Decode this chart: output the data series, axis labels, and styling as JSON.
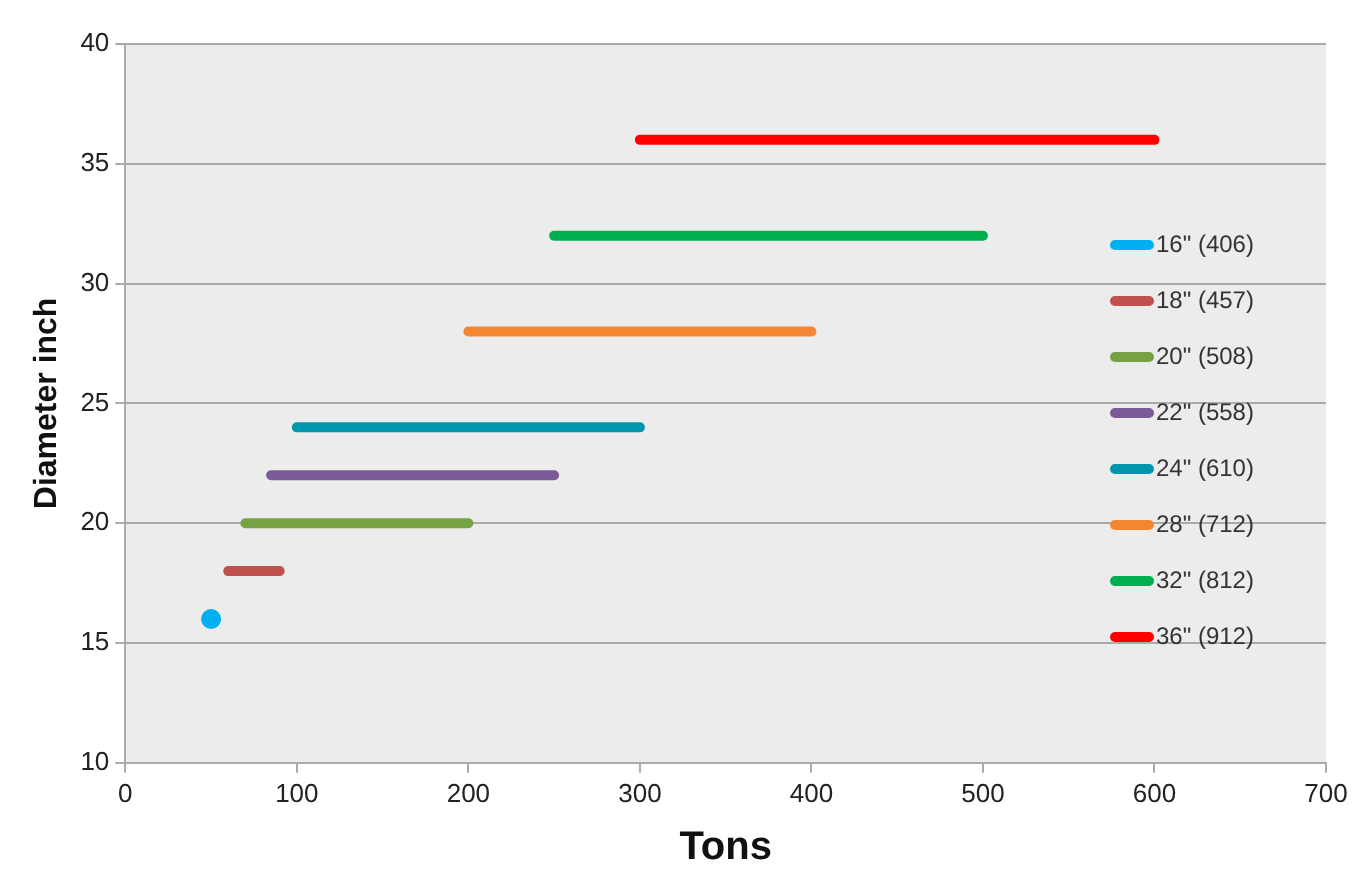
{
  "chart_data": {
    "type": "line",
    "xlabel": "Tons",
    "ylabel": "Diameter inch",
    "xlim": [
      0,
      700
    ],
    "xticks": [
      0,
      100,
      200,
      300,
      400,
      500,
      600,
      700
    ],
    "ylim": [
      10,
      40
    ],
    "yticks": [
      10,
      15,
      20,
      25,
      30,
      35,
      40
    ],
    "grid": "y",
    "legend": "right",
    "marker": "none",
    "series": [
      {
        "name": "16\" (406)",
        "type": "scatter",
        "marker": "circle",
        "color": "#00b0f0",
        "x": [
          50
        ],
        "values": [
          16
        ]
      },
      {
        "name": "18\" (457)",
        "color": "#c0504d",
        "x": [
          60,
          90
        ],
        "values": [
          18,
          18
        ]
      },
      {
        "name": "20\" (508)",
        "color": "#77a244",
        "x": [
          70,
          200
        ],
        "values": [
          20,
          20
        ]
      },
      {
        "name": "22\" (558)",
        "color": "#7b5a98",
        "x": [
          85,
          250
        ],
        "values": [
          22,
          22
        ]
      },
      {
        "name": "24\" (610)",
        "color": "#0096ae",
        "x": [
          100,
          300
        ],
        "values": [
          24,
          24
        ]
      },
      {
        "name": "28\" (712)",
        "color": "#f38633",
        "x": [
          200,
          400
        ],
        "values": [
          28,
          28
        ]
      },
      {
        "name": "32\" (812)",
        "color": "#00b050",
        "x": [
          250,
          500
        ],
        "values": [
          32,
          32
        ]
      },
      {
        "name": "36\" (912)",
        "color": "#ff0000",
        "x": [
          300,
          600
        ],
        "values": [
          36,
          36
        ]
      }
    ]
  }
}
